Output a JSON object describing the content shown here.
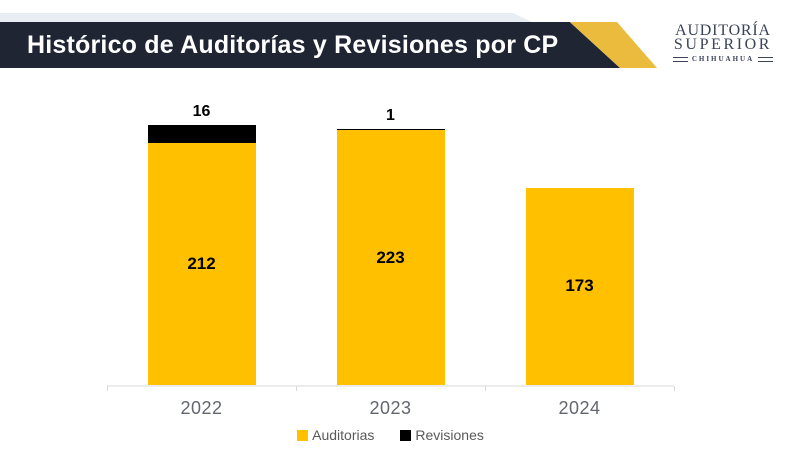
{
  "header": {
    "title": "Histórico de Auditorías y Revisiones por CP",
    "banner_color": "#1F2532",
    "banner_accent_color": "#EABB3D",
    "strip_color": "#E8EDF3"
  },
  "logo": {
    "line1": "AUDITORÍA",
    "line2": "SUPERIOR",
    "line3": "CHIHUAHUA",
    "color": "#3B4357"
  },
  "chart_data": {
    "type": "bar",
    "stacked": true,
    "title": "Histórico de Auditorías y Revisiones por CP",
    "categories": [
      "2022",
      "2023",
      "2024"
    ],
    "series": [
      {
        "name": "Auditorias",
        "color": "#FFC000",
        "values": [
          212,
          223,
          173
        ]
      },
      {
        "name": "Revisiones",
        "color": "#000000",
        "values": [
          16,
          1,
          0
        ]
      }
    ],
    "totals": [
      228,
      224,
      173
    ],
    "xlabel": "",
    "ylabel": "",
    "ylim": [
      0,
      240
    ],
    "grid": false,
    "legend_position": "bottom",
    "data_label_color": "#000000",
    "axis_label_color": "#63666F",
    "legend_text_color": "#595959"
  }
}
